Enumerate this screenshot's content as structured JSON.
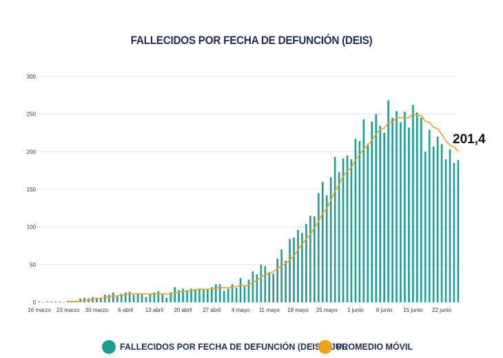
{
  "chart_data": {
    "type": "bar",
    "title": "FALLECIDOS POR FECHA DE DEFUNCIÓN (DEIS)",
    "ylim": [
      0,
      300
    ],
    "yticks": [
      0,
      50,
      100,
      150,
      200,
      250,
      300
    ],
    "grid": true,
    "xtick_labels": [
      "16 marzo",
      "23 marzo",
      "30 marzo",
      "6 abril",
      "13 abril",
      "20 abril",
      "27 abril",
      "4 mayo",
      "11 mayo",
      "18 mayo",
      "25 mayo",
      "1 junio",
      "8 junio",
      "15 junio",
      "22 junio"
    ],
    "xtick_interval_days": 7,
    "series": [
      {
        "name": "FALLECIDOS POR FECHA DE DEFUNCIÓN (DEIS) 3JUL",
        "kind": "bar",
        "color": "#1a9e92",
        "values": [
          1,
          0,
          1,
          1,
          1,
          1,
          0,
          2,
          1,
          2,
          5,
          6,
          5,
          7,
          6,
          6,
          10,
          10,
          13,
          8,
          11,
          13,
          14,
          10,
          11,
          11,
          7,
          11,
          13,
          15,
          11,
          6,
          13,
          20,
          16,
          18,
          16,
          18,
          17,
          18,
          17,
          17,
          20,
          24,
          24,
          15,
          18,
          24,
          19,
          32,
          21,
          30,
          41,
          37,
          50,
          48,
          40,
          38,
          58,
          70,
          55,
          84,
          86,
          96,
          92,
          104,
          115,
          114,
          145,
          160,
          142,
          166,
          193,
          173,
          191,
          195,
          190,
          217,
          214,
          243,
          210,
          240,
          250,
          234,
          225,
          268,
          245,
          254,
          239,
          253,
          232,
          262,
          252,
          245,
          200,
          229,
          207,
          220,
          210,
          190,
          203,
          185,
          189
        ]
      },
      {
        "name": "PROMEDIO MÓVIL",
        "kind": "line",
        "color": "#f0a020",
        "window": 7
      }
    ],
    "annotation": "201,4",
    "legend_position": "bottom"
  }
}
